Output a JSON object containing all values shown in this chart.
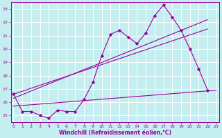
{
  "xlabel": "Windchill (Refroidissement éolien,°C)",
  "bg_color": "#c5eef0",
  "grid_color": "#ffffff",
  "line_color": "#990099",
  "xticks": [
    0,
    1,
    2,
    3,
    4,
    5,
    6,
    7,
    8,
    9,
    10,
    11,
    12,
    13,
    14,
    15,
    16,
    17,
    18,
    19,
    20,
    21,
    22,
    23
  ],
  "yticks": [
    15,
    16,
    17,
    18,
    19,
    20,
    21,
    22,
    23
  ],
  "xlim": [
    -0.3,
    23.3
  ],
  "ylim": [
    14.5,
    23.5
  ],
  "jagged_x": [
    0,
    1,
    2,
    3,
    4,
    5,
    6,
    7,
    8,
    9,
    10,
    11,
    12,
    13,
    14,
    15,
    16,
    17,
    18,
    19,
    20,
    21,
    22
  ],
  "jagged_y": [
    16.6,
    15.3,
    15.3,
    15.0,
    14.8,
    15.4,
    15.3,
    15.3,
    16.2,
    17.5,
    19.5,
    21.1,
    21.4,
    20.9,
    20.4,
    21.2,
    22.5,
    23.3,
    22.4,
    21.4,
    20.0,
    18.5,
    16.9
  ],
  "trend1_x": [
    0,
    23
  ],
  "trend1_y": [
    15.7,
    16.9
  ],
  "trend2_x": [
    0,
    22
  ],
  "trend2_y": [
    16.3,
    22.2
  ],
  "trend3_x": [
    0,
    22
  ],
  "trend3_y": [
    16.6,
    21.5
  ]
}
